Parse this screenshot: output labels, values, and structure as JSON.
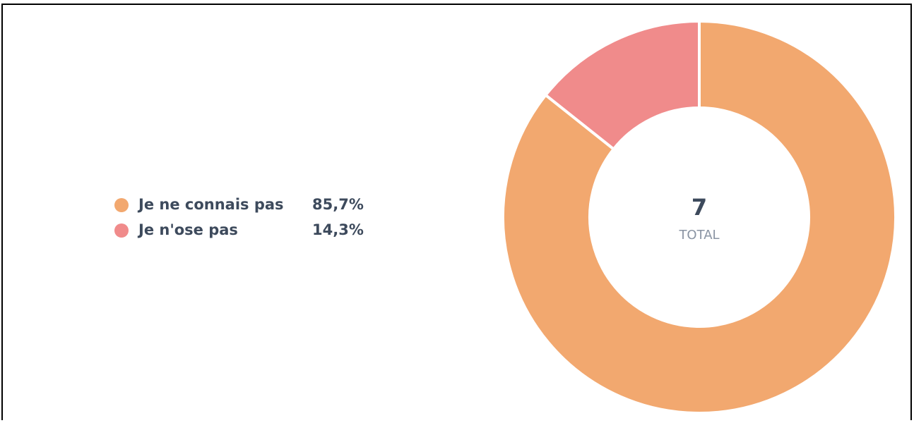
{
  "chart_data": {
    "type": "donut",
    "categories": [
      "Je ne connais pas",
      "Je n'ose pas"
    ],
    "values": [
      85.7,
      14.3
    ],
    "value_labels": [
      "85,7%",
      "14,3%"
    ],
    "colors": [
      "#f2a86f",
      "#f08b8b"
    ],
    "center_value": 7,
    "center_label": "TOTAL"
  }
}
